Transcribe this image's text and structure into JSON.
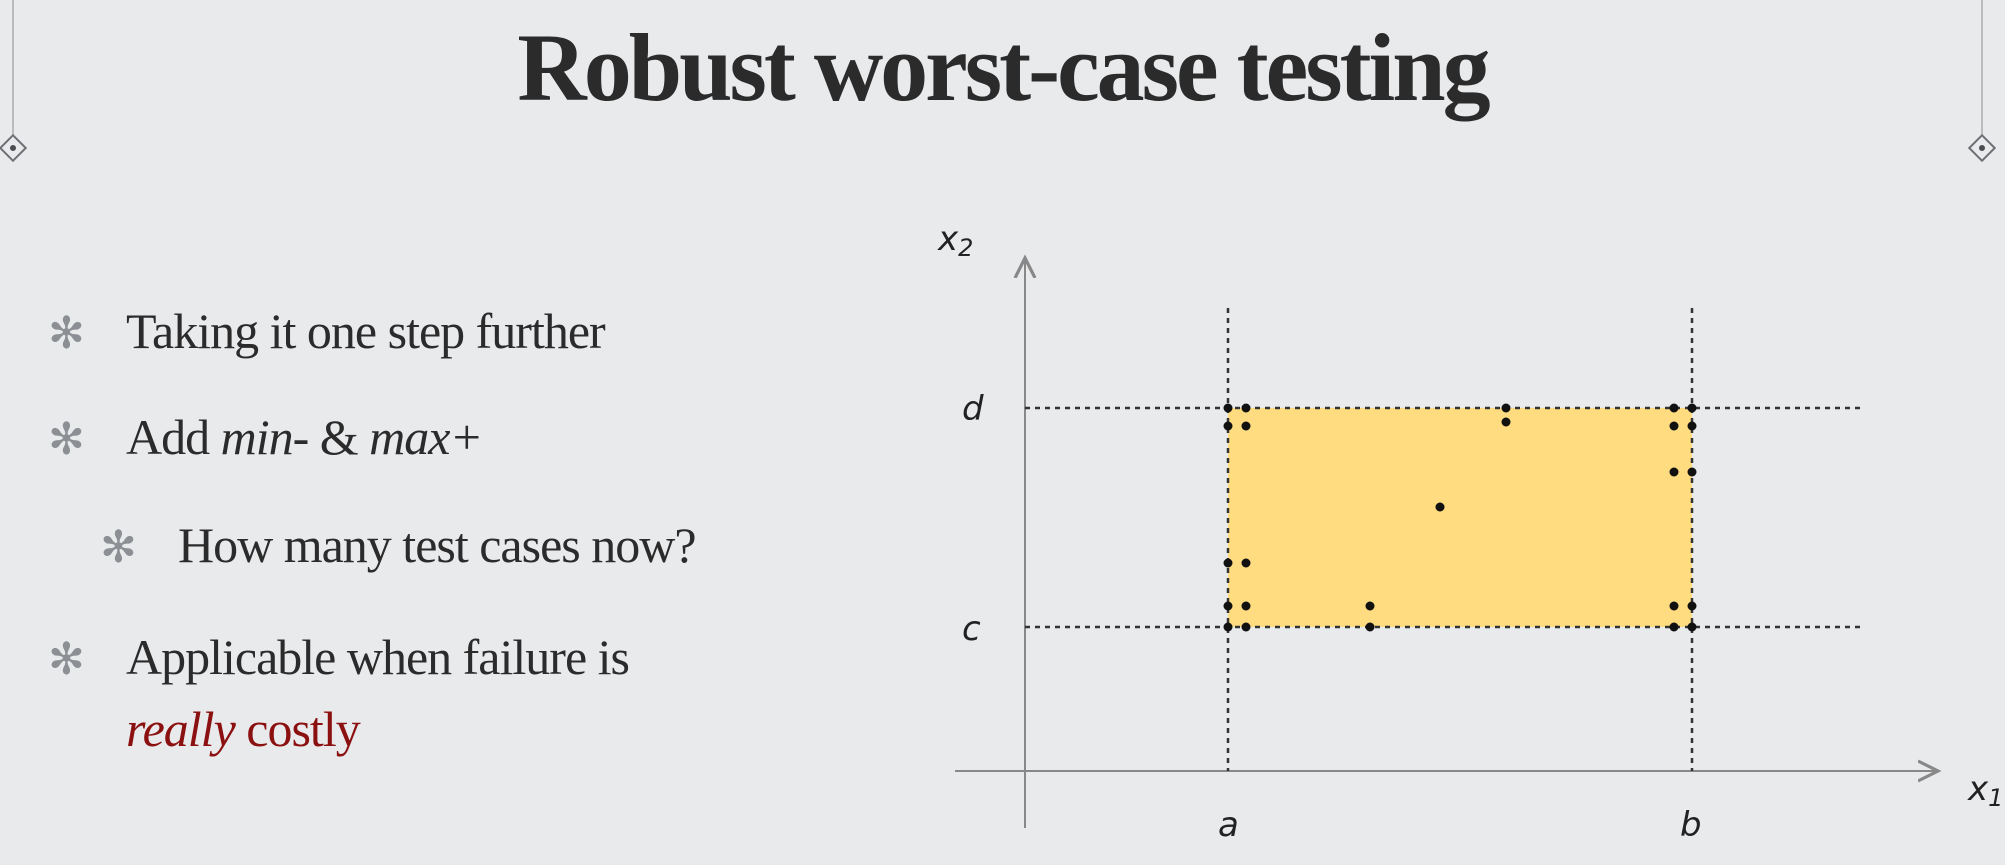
{
  "title": "Robust worst-case testing",
  "bullets": [
    {
      "text": "Taking it one step further"
    },
    {
      "prefix": "Add ",
      "min": "min-",
      "mid": " & ",
      "max": "max+"
    },
    {
      "text": "How many test cases now?",
      "level": 2
    },
    {
      "line1": "Applicable when failure is",
      "really": "really",
      "costly": " costly"
    }
  ],
  "diagram": {
    "x_axis_label": "x1",
    "y_axis_label": "x2",
    "x_ticks": [
      "a",
      "b"
    ],
    "y_ticks": [
      "c",
      "d"
    ],
    "fill_color": "#ffdc80"
  }
}
